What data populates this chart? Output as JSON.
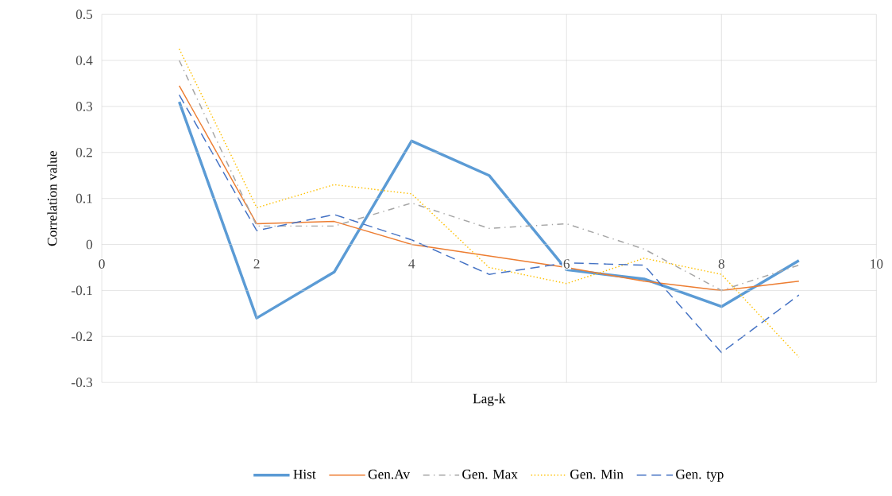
{
  "chart_data": {
    "type": "line",
    "xlabel": "Lag-k",
    "ylabel": "Correlation value",
    "x": [
      1,
      2,
      3,
      4,
      5,
      6,
      7,
      8,
      9
    ],
    "series": [
      {
        "name": "Hist",
        "color": "#5b9bd5",
        "line_style": "solid",
        "values": [
          0.31,
          -0.16,
          -0.06,
          0.225,
          0.15,
          -0.055,
          -0.075,
          -0.135,
          -0.035
        ]
      },
      {
        "name": "Gen.Av",
        "color": "#ed7d31",
        "line_style": "solid",
        "values": [
          0.345,
          0.045,
          0.05,
          0.0,
          -0.025,
          -0.05,
          -0.08,
          -0.1,
          -0.08
        ]
      },
      {
        "name": "Gen. Max",
        "color": "#a5a5a5",
        "line_style": "dashdot",
        "values": [
          0.4,
          0.04,
          0.04,
          0.09,
          0.035,
          0.045,
          -0.01,
          -0.1,
          -0.045
        ]
      },
      {
        "name": "Gen. Min",
        "color": "#ffc000",
        "line_style": "dotted",
        "values": [
          0.425,
          0.08,
          0.13,
          0.11,
          -0.05,
          -0.085,
          -0.03,
          -0.065,
          -0.245
        ]
      },
      {
        "name": "Gen. typ",
        "color": "#4472c4",
        "line_style": "dashed",
        "values": [
          0.325,
          0.03,
          0.065,
          0.01,
          -0.065,
          -0.04,
          -0.045,
          -0.235,
          -0.11
        ]
      }
    ],
    "xlim": [
      0,
      10
    ],
    "xticks": [
      0,
      2,
      4,
      6,
      8,
      10
    ],
    "ylim": [
      -0.3,
      0.5
    ],
    "yticks": [
      -0.3,
      -0.2,
      -0.1,
      0,
      0.1,
      0.2,
      0.3,
      0.4,
      0.5
    ],
    "grid": true,
    "legend": "bottom",
    "marker": "none"
  }
}
